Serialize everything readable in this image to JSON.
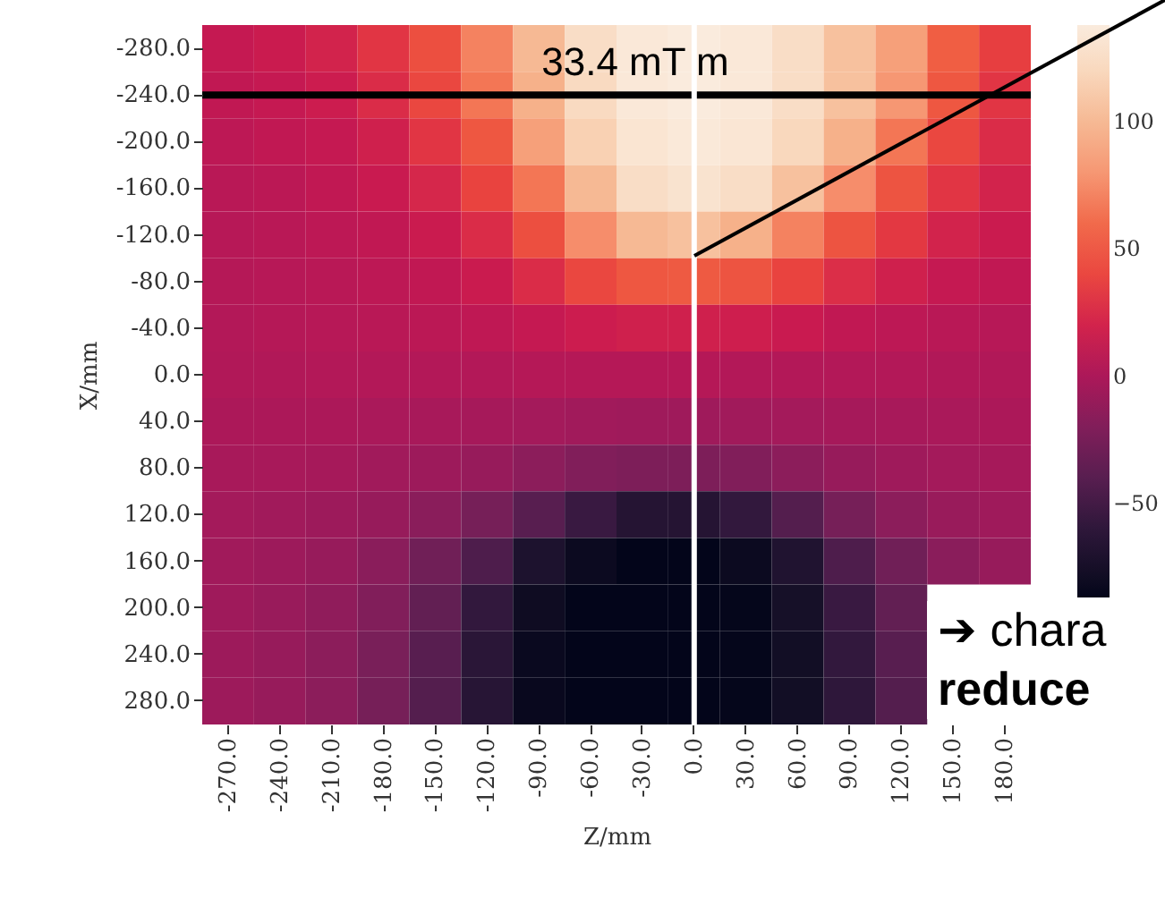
{
  "chart_data": {
    "type": "heatmap",
    "xlabel": "Z/mm",
    "ylabel": "X/mm",
    "categories": [
      "-270.0",
      "-240.0",
      "-210.0",
      "-180.0",
      "-150.0",
      "-120.0",
      "-90.0",
      "-60.0",
      "-30.0",
      "0.0",
      "30.0",
      "60.0",
      "90.0",
      "120.0",
      "150.0",
      "180.0"
    ],
    "y_categories": [
      "-280.0",
      "-240.0",
      "-200.0",
      "-160.0",
      "-120.0",
      "-80.0",
      "-40.0",
      "0.0",
      "40.0",
      "80.0",
      "120.0",
      "160.0",
      "200.0",
      "240.0",
      "280.0"
    ],
    "cells": [
      [
        12,
        15,
        20,
        30,
        45,
        70,
        100,
        125,
        135,
        138,
        135,
        125,
        105,
        85,
        55,
        35
      ],
      [
        10,
        12,
        16,
        25,
        40,
        65,
        95,
        122,
        135,
        138,
        135,
        125,
        105,
        80,
        50,
        30
      ],
      [
        8,
        10,
        12,
        18,
        30,
        50,
        85,
        115,
        132,
        136,
        133,
        120,
        95,
        65,
        40,
        25
      ],
      [
        6,
        7,
        10,
        14,
        22,
        38,
        65,
        100,
        125,
        130,
        125,
        105,
        75,
        48,
        30,
        20
      ],
      [
        5,
        6,
        8,
        10,
        15,
        25,
        45,
        75,
        100,
        105,
        95,
        70,
        48,
        32,
        20,
        15
      ],
      [
        4,
        5,
        6,
        8,
        10,
        15,
        25,
        40,
        50,
        52,
        48,
        38,
        26,
        18,
        12,
        10
      ],
      [
        3,
        4,
        5,
        6,
        7,
        9,
        12,
        16,
        18,
        18,
        17,
        14,
        10,
        8,
        6,
        5
      ],
      [
        2,
        2,
        3,
        3,
        3,
        3,
        4,
        4,
        4,
        4,
        3,
        3,
        3,
        3,
        2,
        2
      ],
      [
        0,
        0,
        0,
        -1,
        -2,
        -3,
        -4,
        -5,
        -6,
        -6,
        -5,
        -4,
        -3,
        -2,
        -1,
        0
      ],
      [
        -2,
        -2,
        -3,
        -5,
        -7,
        -10,
        -15,
        -20,
        -22,
        -22,
        -20,
        -15,
        -10,
        -6,
        -4,
        -3
      ],
      [
        -4,
        -5,
        -7,
        -10,
        -16,
        -25,
        -40,
        -55,
        -65,
        -65,
        -58,
        -42,
        -25,
        -15,
        -9,
        -6
      ],
      [
        -5,
        -7,
        -10,
        -16,
        -28,
        -45,
        -70,
        -82,
        -87,
        -87,
        -82,
        -68,
        -45,
        -28,
        -16,
        -10
      ],
      [
        -6,
        -9,
        -13,
        -20,
        -35,
        -58,
        -80,
        -87,
        -87,
        -87,
        -86,
        -75,
        -55,
        -35,
        null,
        null
      ],
      [
        -7,
        -10,
        -15,
        -24,
        -40,
        -62,
        -83,
        -87,
        -87,
        -87,
        -86,
        -78,
        -58,
        -40,
        null,
        null
      ],
      [
        -7,
        -10,
        -15,
        -25,
        -42,
        -64,
        -84,
        -87,
        -87,
        -87,
        -86,
        -78,
        -60,
        -42,
        null,
        null
      ]
    ],
    "clim": [
      -87,
      138
    ],
    "cticks": [
      100,
      50,
      0,
      -50
    ],
    "ref_lines": [
      {
        "axis": "y",
        "value": "-240.0",
        "label": "33.4 mT m",
        "color": "#000000"
      },
      {
        "axis": "x",
        "value": "0.0",
        "color": "#ffffff"
      }
    ],
    "annotations": [
      "➔ chara",
      "reduce"
    ]
  }
}
